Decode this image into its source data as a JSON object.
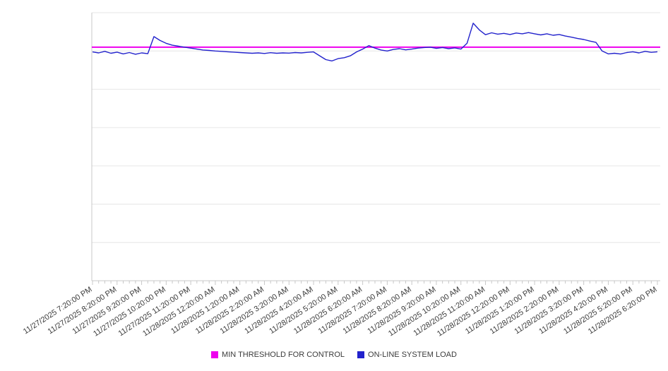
{
  "chart": {
    "legend": [
      {
        "label": "MIN THRESHOLD FOR CONTROL",
        "color": "#ee00ee"
      },
      {
        "label": "ON-LINE SYSTEM LOAD",
        "color": "#2222cc"
      }
    ]
  },
  "chart_data": {
    "type": "line",
    "title": "",
    "xlabel": "",
    "ylabel": "",
    "ylim": [
      0,
      140
    ],
    "gridline_step": 20,
    "grid": true,
    "legend_position": "bottom",
    "x_interval_minutes": 15,
    "points_per_hour": 4,
    "x_tick_labels": [
      "11/27/2025 7:20:00 PM",
      "11/27/2025 8:20:00 PM",
      "11/27/2025 9:20:00 PM",
      "11/27/2025 10:20:00 PM",
      "11/27/2025 11:20:00 PM",
      "11/28/2025 12:20:00 AM",
      "11/28/2025 1:20:00 AM",
      "11/28/2025 2:20:00 AM",
      "11/28/2025 3:20:00 AM",
      "11/28/2025 4:20:00 AM",
      "11/28/2025 5:20:00 AM",
      "11/28/2025 6:20:00 AM",
      "11/28/2025 7:20:00 AM",
      "11/28/2025 8:20:00 AM",
      "11/28/2025 9:20:00 AM",
      "11/28/2025 10:20:00 AM",
      "11/28/2025 11:20:00 AM",
      "11/28/2025 12:20:00 PM",
      "11/28/2025 1:20:00 PM",
      "11/28/2025 2:20:00 PM",
      "11/28/2025 3:20:00 PM",
      "11/28/2025 4:20:00 PM",
      "11/28/2025 5:20:00 PM",
      "11/28/2025 6:20:00 PM"
    ],
    "series": [
      {
        "name": "MIN THRESHOLD FOR CONTROL",
        "type": "constant",
        "value": 122,
        "color": "#ee00ee"
      },
      {
        "name": "ON-LINE SYSTEM LOAD",
        "type": "line",
        "color": "#2222cc",
        "values": [
          119.5,
          119,
          119.8,
          118.8,
          119.4,
          118.5,
          119.2,
          118.3,
          119,
          118.6,
          127.5,
          125.5,
          124,
          123,
          122.5,
          122,
          121.5,
          121,
          120.5,
          120.3,
          120,
          119.8,
          119.6,
          119.4,
          119.2,
          119,
          118.8,
          119,
          118.7,
          119.1,
          118.8,
          119,
          118.9,
          119.2,
          119,
          119.3,
          119.5,
          117.5,
          115.5,
          114.8,
          116,
          116.5,
          117.5,
          119.5,
          121,
          122.8,
          121.5,
          120.5,
          120,
          120.8,
          121.2,
          120.6,
          121,
          121.5,
          121.8,
          122,
          121.4,
          121.8,
          121.2,
          121.6,
          121,
          124,
          134.5,
          131,
          128.5,
          129.5,
          128.8,
          129.2,
          128.6,
          129.4,
          129,
          129.6,
          129,
          128.4,
          129,
          128.2,
          128.6,
          127.8,
          127.2,
          126.5,
          126,
          125.2,
          124.5,
          120,
          118.5,
          118.8,
          118.4,
          119.2,
          119.6,
          119,
          119.8,
          119.3,
          119.6
        ]
      }
    ]
  }
}
